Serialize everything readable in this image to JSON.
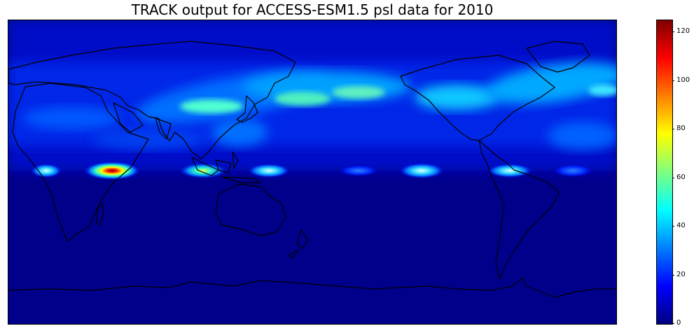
{
  "figure": {
    "title": "TRACK output for ACCESS-ESM1.5 psl data for 2010"
  },
  "colorbar": {
    "colormap": "jet",
    "range": [
      0,
      125
    ],
    "ticks": [
      0,
      20,
      40,
      60,
      80,
      100,
      120
    ],
    "tick_labels": [
      "0",
      "20",
      "40",
      "60",
      "80",
      "100",
      "120"
    ],
    "colors": [
      "#00007f",
      "#0000ff",
      "#007fff",
      "#00ffff",
      "#7fff7f",
      "#ffff00",
      "#ff7f00",
      "#ff0000",
      "#7f0000"
    ]
  },
  "map": {
    "projection": "PlateCarree",
    "central_longitude": 180,
    "background_color": "#00008b",
    "coastline_color": "#000000"
  }
}
